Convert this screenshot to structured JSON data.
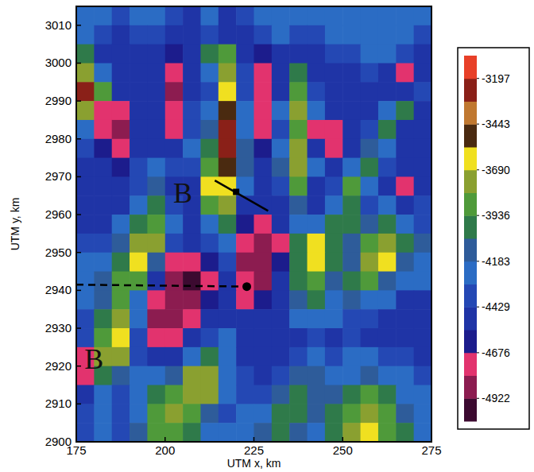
{
  "chart_data": {
    "type": "heatmap",
    "x_label": "UTM x, km",
    "y_label": "UTM y, km",
    "xlim": [
      175,
      275
    ],
    "ylim": [
      2900,
      3015
    ],
    "xticks": [
      175,
      200,
      225,
      250,
      275
    ],
    "yticks": [
      2900,
      2910,
      2920,
      2930,
      2940,
      2950,
      2960,
      2970,
      2980,
      2990,
      3000,
      3010
    ],
    "x": [
      177.5,
      182.5,
      187.5,
      192.5,
      197.5,
      202.5,
      207.5,
      212.5,
      217.5,
      222.5,
      227.5,
      232.5,
      237.5,
      242.5,
      247.5,
      252.5,
      257.5,
      262.5,
      267.5,
      272.5
    ],
    "y": [
      3012.5,
      3007.5,
      3002.5,
      2997.5,
      2992.5,
      2987.5,
      2982.5,
      2977.5,
      2972.5,
      2967.5,
      2962.5,
      2957.5,
      2952.5,
      2947.5,
      2942.5,
      2937.5,
      2932.5,
      2927.5,
      2922.5,
      2917.5,
      2912.5,
      2907.5,
      2902.5
    ],
    "cells": [
      [
        -4250,
        -4300,
        -4400,
        -4300,
        -4250,
        -4400,
        -4450,
        -4300,
        -4450,
        -4400,
        -4300,
        -4250,
        -4200,
        -4250,
        -4300,
        -4250,
        -4200,
        -4200,
        -4250,
        -4300
      ],
      [
        -4300,
        -4400,
        -4450,
        -4350,
        -4400,
        -4480,
        -4500,
        -4350,
        -4480,
        -4450,
        -4350,
        -4300,
        -4400,
        -4350,
        -4300,
        -4250,
        -4250,
        -4250,
        -4300,
        -4350
      ],
      [
        -4000,
        -4450,
        -4500,
        -4480,
        -4500,
        -4600,
        -4500,
        -4000,
        -3900,
        -4500,
        -4650,
        -4500,
        -4450,
        -4500,
        -4400,
        -4350,
        -4200,
        -4300,
        -4400,
        -4450
      ],
      [
        -3700,
        -4300,
        -4450,
        -4500,
        -4480,
        -4750,
        -4500,
        -4300,
        -3700,
        -4400,
        -4750,
        -4500,
        -4000,
        -4450,
        -4500,
        -4450,
        -4400,
        -4500,
        -4750,
        -4500
      ],
      [
        -3300,
        -3900,
        -4500,
        -4500,
        -4550,
        -4800,
        -4500,
        -4400,
        -3650,
        -4350,
        -4780,
        -4450,
        -3900,
        -4400,
        -4550,
        -4500,
        -4450,
        -4550,
        -4500,
        -4400
      ],
      [
        -3800,
        -4750,
        -4700,
        -4500,
        -4500,
        -4750,
        -4400,
        -4200,
        -3500,
        -4300,
        -4760,
        -4300,
        -3750,
        -4300,
        -4500,
        -4480,
        -4500,
        -4300,
        -4000,
        -4450
      ],
      [
        -4200,
        -4770,
        -4850,
        -4500,
        -4480,
        -4700,
        -4350,
        -4100,
        -3300,
        -4200,
        -4750,
        -4350,
        -3900,
        -4700,
        -4700,
        -4500,
        -4400,
        -4000,
        -4450,
        -4500
      ],
      [
        -4400,
        -4600,
        -4780,
        -4480,
        -4450,
        -4500,
        -4300,
        -4000,
        -3250,
        -4150,
        -4600,
        -4200,
        -3800,
        -4500,
        -4780,
        -4450,
        -4100,
        -4300,
        -4500,
        -4550
      ],
      [
        -4500,
        -4500,
        -4600,
        -4400,
        -4300,
        -4400,
        -4350,
        -3900,
        -3450,
        -4150,
        -4500,
        -4100,
        -3700,
        -4200,
        -4500,
        -4200,
        -3950,
        -4400,
        -4550,
        -4500
      ],
      [
        -4500,
        -4550,
        -4500,
        -4350,
        -4100,
        -4450,
        -4500,
        -3650,
        -3600,
        -4300,
        -4500,
        -4400,
        -3900,
        -4450,
        -4400,
        -3900,
        -4300,
        -4550,
        -4750,
        -4500
      ],
      [
        -4480,
        -4500,
        -4450,
        -4200,
        -4000,
        -4400,
        -4550,
        -3850,
        -3750,
        -4450,
        -4550,
        -4500,
        -4100,
        -4450,
        -4200,
        -4000,
        -4400,
        -4300,
        -4500,
        -4400
      ],
      [
        -4450,
        -4450,
        -4300,
        -4000,
        -3900,
        -4300,
        -4500,
        -4200,
        -3950,
        -4600,
        -4700,
        -4500,
        -4200,
        -4300,
        -4000,
        -4050,
        -4150,
        -4000,
        -4300,
        -4350
      ],
      [
        -4400,
        -4350,
        -4150,
        -3800,
        -3700,
        -4400,
        -4500,
        -4400,
        -4300,
        -4780,
        -4850,
        -4750,
        -4000,
        -3650,
        -3950,
        -4100,
        -3900,
        -3750,
        -4050,
        -4100
      ],
      [
        -4300,
        -4200,
        -4000,
        -3650,
        -4100,
        -4700,
        -4780,
        -4600,
        -4400,
        -4800,
        -4850,
        -4600,
        -3950,
        -3600,
        -4050,
        -4100,
        -3800,
        -3650,
        -4100,
        -4200
      ],
      [
        -4250,
        -4150,
        -3900,
        -3900,
        -4500,
        -4850,
        -4950,
        -4700,
        -4500,
        -4750,
        -4800,
        -4550,
        -4000,
        -3900,
        -4100,
        -4000,
        -3900,
        -4100,
        -4200,
        -4300
      ],
      [
        -4300,
        -4100,
        -3850,
        -4200,
        -4700,
        -4900,
        -4850,
        -4650,
        -4550,
        -4700,
        -4600,
        -4500,
        -4100,
        -4000,
        -4200,
        -4100,
        -4200,
        -4300,
        -4450,
        -4550
      ],
      [
        -4350,
        -4000,
        -3700,
        -4300,
        -4800,
        -4850,
        -4750,
        -4500,
        -4450,
        -4550,
        -4500,
        -4450,
        -4300,
        -4200,
        -4300,
        -4350,
        -4400,
        -4450,
        -4500,
        -4550
      ],
      [
        -4400,
        -3900,
        -3650,
        -4400,
        -4750,
        -4700,
        -4500,
        -4400,
        -4300,
        -4450,
        -4500,
        -4480,
        -4450,
        -4400,
        -4450,
        -4400,
        -4450,
        -4500,
        -4550,
        -4550
      ],
      [
        -4700,
        -3800,
        -3800,
        -4350,
        -4500,
        -4450,
        -4200,
        -4000,
        -4300,
        -4450,
        -4500,
        -4450,
        -4350,
        -4300,
        -4350,
        -4300,
        -4300,
        -4350,
        -4400,
        -4450
      ],
      [
        -4750,
        -4000,
        -4100,
        -4300,
        -4300,
        -4100,
        -3800,
        -3700,
        -4200,
        -4400,
        -4450,
        -4350,
        -4100,
        -4150,
        -4250,
        -4200,
        -4100,
        -4200,
        -4300,
        -4400
      ],
      [
        -4500,
        -4200,
        -4350,
        -4250,
        -4000,
        -3900,
        -3750,
        -3800,
        -4300,
        -4400,
        -4350,
        -4100,
        -4000,
        -4100,
        -4150,
        -4000,
        -3900,
        -4000,
        -4200,
        -4300
      ],
      [
        -4400,
        -4300,
        -4400,
        -4200,
        -3900,
        -3800,
        -3900,
        -4100,
        -4350,
        -4300,
        -4200,
        -4000,
        -4050,
        -4150,
        -4050,
        -3850,
        -3700,
        -3900,
        -4100,
        -4250
      ],
      [
        -4350,
        -4300,
        -4350,
        -4150,
        -3850,
        -3850,
        -4000,
        -4200,
        -4300,
        -4250,
        -4100,
        -3950,
        -4100,
        -4200,
        -3950,
        -3700,
        -3600,
        -3850,
        -4050,
        -4200
      ]
    ],
    "colorbar": {
      "range": [
        -5045,
        -3074
      ],
      "ticks": [
        -3197,
        -3443,
        -3690,
        -3936,
        -4183,
        -4429,
        -4676,
        -4922
      ],
      "colors": [
        "#3c0a30",
        "#8c1c50",
        "#e2336e",
        "#1c1c8c",
        "#1f34a6",
        "#2448b4",
        "#2b6cc4",
        "#2e5c9a",
        "#2f7a4a",
        "#4f9a3a",
        "#8aa030",
        "#f0e020",
        "#4a2a10",
        "#c07830",
        "#8a2018",
        "#e84028"
      ]
    },
    "annotations": [
      {
        "text": "B",
        "x": 205,
        "y": 2965
      },
      {
        "text": "B",
        "x": 180,
        "y": 2921
      }
    ],
    "lines": [
      {
        "x": [
          214,
          229
        ],
        "y": [
          2969,
          2961
        ],
        "line_style": "solid"
      },
      {
        "x": [
          175,
          223
        ],
        "y": [
          2941.5,
          2941
        ],
        "line_style": "dashed"
      }
    ],
    "markers": [
      {
        "x": 220,
        "y": 2966,
        "marker": "square"
      },
      {
        "x": 223,
        "y": 2941,
        "marker": "circle"
      }
    ]
  }
}
